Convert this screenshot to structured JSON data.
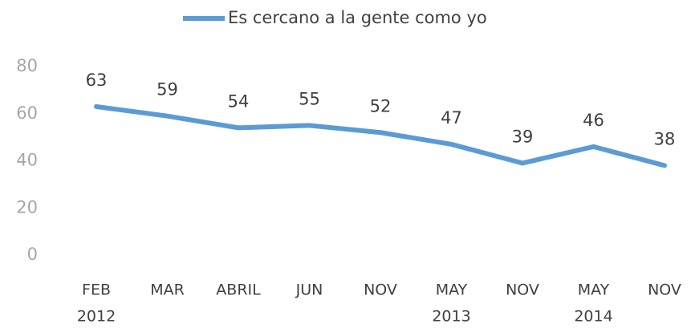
{
  "chart_data": {
    "type": "line",
    "categories": [
      [
        "FEB",
        "2012"
      ],
      [
        "MAR"
      ],
      [
        "ABRIL"
      ],
      [
        "JUN"
      ],
      [
        "NOV"
      ],
      [
        "MAY",
        "2013"
      ],
      [
        "NOV"
      ],
      [
        "MAY",
        "2014"
      ],
      [
        "NOV"
      ]
    ],
    "series": [
      {
        "name": "Es cercano a la gente como yo",
        "color": "#5b9bd5",
        "values": [
          63,
          59,
          54,
          55,
          52,
          47,
          39,
          46,
          38
        ]
      }
    ],
    "ylim": [
      0,
      80
    ],
    "yticks": [
      0,
      20,
      40,
      60,
      80
    ],
    "grid": false,
    "legend": "top"
  }
}
